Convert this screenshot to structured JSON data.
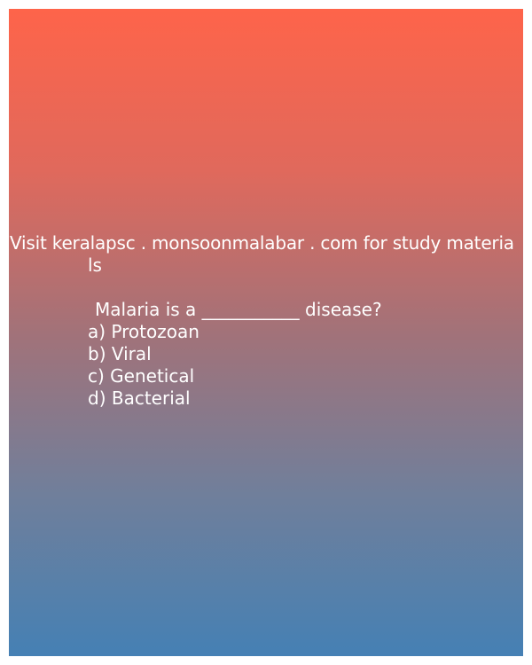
{
  "card": {
    "visit_line_1": "Visit keralapsc . monsoonmalabar . com for study materia",
    "visit_line_2": "ls",
    "question": "Malaria is a ___________ disease?",
    "options": [
      "a) Protozoan",
      "b) Viral",
      "c) Genetical",
      "d) Bacterial"
    ]
  },
  "colors": {
    "gradient_top": "#fe644a",
    "gradient_bottom": "#4580b4",
    "text": "#ffffff",
    "page_background": "#ffffff"
  }
}
